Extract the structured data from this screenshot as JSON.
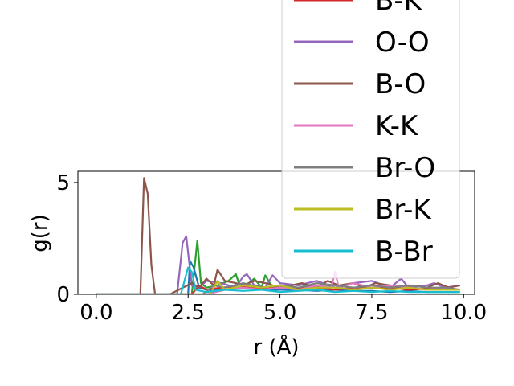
{
  "chart_data": {
    "type": "line",
    "title": "",
    "xlabel": "r (Å)",
    "ylabel": "g(r)",
    "xlim": [
      -0.5,
      10.3
    ],
    "ylim": [
      0,
      5.5
    ],
    "xticks": [
      0.0,
      2.5,
      5.0,
      7.5,
      10.0
    ],
    "xtick_labels": [
      "0.0",
      "2.5",
      "5.0",
      "7.5",
      "10.0"
    ],
    "yticks": [
      0,
      5
    ],
    "ytick_labels": [
      "0",
      "5"
    ],
    "grid": false,
    "legend_position": "upper right (extends above axes)",
    "series": [
      {
        "name": "B-K",
        "color": "#d62728",
        "x": [
          0,
          2.0,
          2.6,
          2.7,
          2.8,
          3.0,
          3.4,
          3.8,
          4.2,
          4.6,
          5.0,
          5.5,
          6.0,
          6.5,
          7.0,
          7.5,
          8.0,
          8.5,
          9.0,
          9.5,
          9.9
        ],
        "y": [
          0,
          0,
          0,
          0.2,
          0.4,
          0.2,
          0.3,
          0.35,
          0.3,
          0.25,
          0.3,
          0.25,
          0.3,
          0.2,
          0.3,
          0.25,
          0.3,
          0.2,
          0.25,
          0.2,
          0.2
        ]
      },
      {
        "name": "O-O",
        "color": "#9467bd",
        "x": [
          0,
          2.2,
          2.35,
          2.45,
          2.6,
          2.8,
          3.0,
          3.4,
          3.8,
          4.0,
          4.1,
          4.3,
          4.6,
          4.8,
          5.0,
          5.5,
          6.0,
          6.5,
          7.0,
          7.5,
          8.0,
          8.3,
          8.5,
          9.0,
          9.2,
          9.5,
          9.9
        ],
        "y": [
          0,
          0,
          2.3,
          2.6,
          0.4,
          0.3,
          0.6,
          0.5,
          0.3,
          0.8,
          0.9,
          0.4,
          0.3,
          0.85,
          0.5,
          0.4,
          0.6,
          0.3,
          0.5,
          0.6,
          0.3,
          0.7,
          0.3,
          0.4,
          0.5,
          0.3,
          0.4
        ]
      },
      {
        "name": "B-O",
        "color": "#8c564b",
        "x": [
          0,
          1.2,
          1.3,
          1.4,
          1.5,
          1.6,
          2.0,
          2.6,
          2.8,
          3.0,
          3.2,
          3.3,
          3.5,
          3.8,
          4.0,
          4.3,
          4.6,
          5.0,
          5.3,
          5.6,
          6.0,
          6.3,
          6.6,
          7.0,
          7.3,
          7.6,
          8.0,
          8.3,
          8.6,
          9.0,
          9.3,
          9.6,
          9.9
        ],
        "y": [
          0,
          0,
          5.2,
          4.5,
          1.3,
          0,
          0,
          0.5,
          0.3,
          0.7,
          0.4,
          1.1,
          0.6,
          0.5,
          0.4,
          0.6,
          0.5,
          0.3,
          0.4,
          0.5,
          0.3,
          0.6,
          0.4,
          0.5,
          0.3,
          0.5,
          0.4,
          0.3,
          0.4,
          0.3,
          0.5,
          0.3,
          0.4
        ]
      },
      {
        "name": "K-K",
        "color": "#e377c2",
        "x": [
          0,
          3.0,
          3.5,
          4.0,
          4.5,
          5.0,
          5.5,
          6.0,
          6.4,
          6.5,
          6.6,
          7.0,
          7.5,
          8.0,
          8.5,
          9.0,
          9.5,
          9.9
        ],
        "y": [
          0,
          0,
          0.2,
          0.3,
          0.2,
          0.3,
          0.2,
          0.4,
          0.3,
          1.0,
          0.3,
          0.5,
          0.3,
          0.4,
          0.3,
          0.2,
          0.3,
          0.2
        ]
      },
      {
        "name": "Br-O",
        "color": "#7f7f7f",
        "x": [
          0,
          2.9,
          3.2,
          3.5,
          4.0,
          4.5,
          5.0,
          5.5,
          6.0,
          6.5,
          7.0,
          7.5,
          8.0,
          8.5,
          9.0,
          9.5,
          9.9
        ],
        "y": [
          0,
          0,
          0.4,
          0.3,
          0.5,
          0.3,
          0.4,
          0.3,
          0.5,
          0.4,
          0.3,
          0.4,
          0.3,
          0.4,
          0.3,
          0.3,
          0.2
        ]
      },
      {
        "name": "Br-K",
        "color": "#bcbd22",
        "x": [
          0,
          3.1,
          3.3,
          3.5,
          4.0,
          4.5,
          5.0,
          5.5,
          6.0,
          6.5,
          7.0,
          7.5,
          8.0,
          8.5,
          9.0,
          9.5,
          9.9
        ],
        "y": [
          0,
          0,
          0.6,
          0.2,
          0.4,
          0.3,
          0.4,
          0.2,
          0.3,
          0.3,
          0.2,
          0.3,
          0.2,
          0.3,
          0.2,
          0.2,
          0.2
        ]
      },
      {
        "name": "B-Br",
        "color": "#17becf",
        "x": [
          0,
          2.3,
          2.5,
          2.6,
          2.7,
          3.0,
          3.5,
          4.0,
          4.5,
          5.0,
          5.5,
          6.0,
          6.5,
          7.0,
          7.5,
          8.0,
          8.5,
          9.0,
          9.5,
          9.9
        ],
        "y": [
          0,
          0,
          1.2,
          1.0,
          0.2,
          0.1,
          0.2,
          0.15,
          0.2,
          0.1,
          0.15,
          0.2,
          0.1,
          0.15,
          0.1,
          0.15,
          0.1,
          0.1,
          0.1,
          0.1
        ]
      }
    ],
    "extra_unlabeled_series": [
      {
        "color": "#2ca02c",
        "x": [
          0,
          2.6,
          2.75,
          2.85,
          3.0,
          3.3,
          3.6,
          3.8,
          3.9,
          4.0,
          4.3,
          4.5,
          4.6,
          4.8,
          5.0,
          5.5,
          6.0,
          6.5,
          7.0,
          7.5,
          8.0,
          8.5,
          9.0,
          9.5,
          9.9
        ],
        "y": [
          0,
          0,
          2.4,
          0.5,
          0.3,
          0.4,
          0.6,
          0.9,
          0.4,
          0.3,
          0.7,
          0.3,
          0.85,
          0.3,
          0.4,
          0.3,
          0.4,
          0.3,
          0.2,
          0.3,
          0.2,
          0.3,
          0.2,
          0.2,
          0.2
        ]
      },
      {
        "color": "#1f77b4",
        "x": [
          0,
          2.5,
          2.55,
          2.65,
          2.8,
          3.0,
          3.5,
          4.0,
          4.5,
          5.0,
          5.5,
          6.0,
          6.5,
          7.0,
          7.5,
          8.0,
          8.5,
          9.0,
          9.5,
          9.9
        ],
        "y": [
          0,
          0,
          1.5,
          1.2,
          0.3,
          0.2,
          0.2,
          0.3,
          0.2,
          0.2,
          0.2,
          0.15,
          0.2,
          0.15,
          0.15,
          0.1,
          0.15,
          0.1,
          0.1,
          0.1
        ]
      }
    ]
  }
}
